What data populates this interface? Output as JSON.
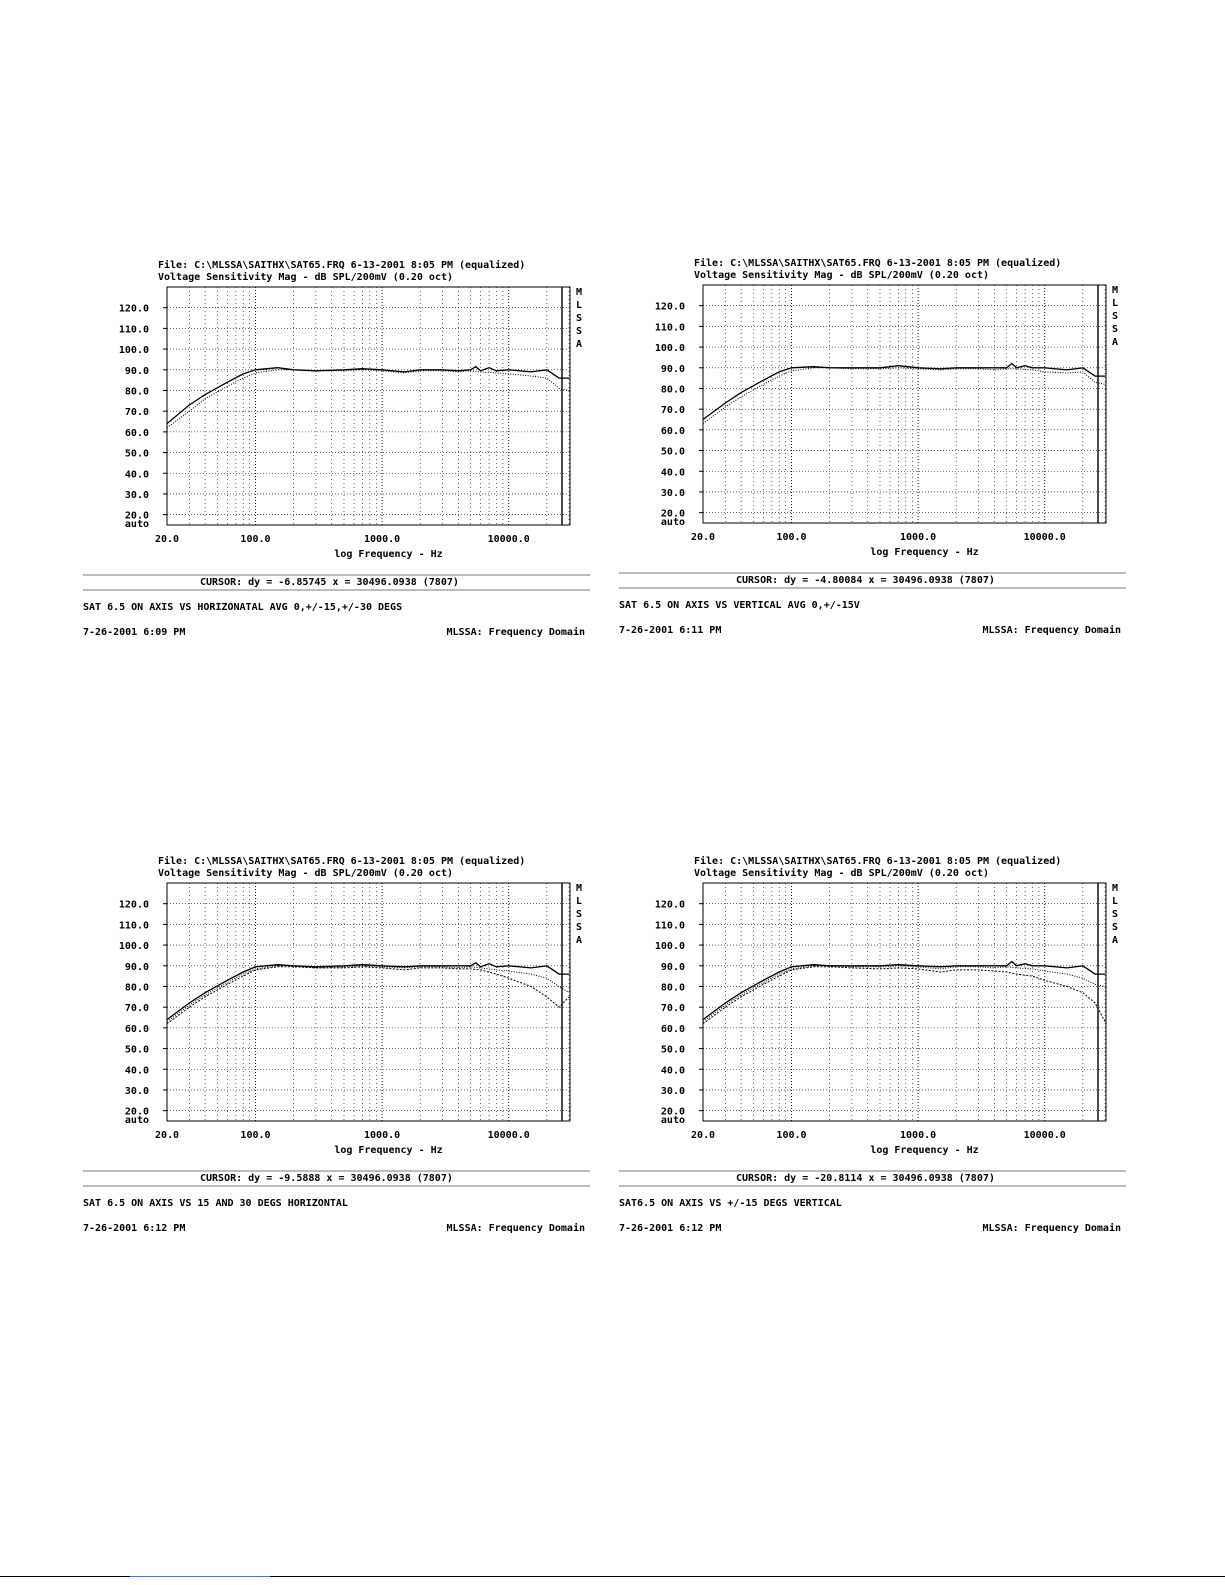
{
  "common": {
    "file_line": "File: C:\\MLSSA\\SAITHX\\SAT65.FRQ 6-13-2001 8:05 PM (equalized)",
    "title_line": "Voltage Sensitivity Mag - dB SPL/200mV (0.20 oct)",
    "brand_letters": [
      "M",
      "L",
      "S",
      "S",
      "A"
    ],
    "x_label": "log Frequency - Hz",
    "x_ticks": [
      "20.0",
      "100.0",
      "1000.0",
      "10000.0"
    ],
    "y_ticks": [
      "auto",
      "20.0",
      "30.0",
      "40.0",
      "50.0",
      "60.0",
      "70.0",
      "80.0",
      "90.0",
      "100.0",
      "110.0",
      "120.0"
    ],
    "domain_label": "MLSSA: Frequency Domain"
  },
  "panels": [
    {
      "cursor": "CURSOR: dy = -6.85745 x = 30496.0938 (7807)",
      "caption": "SAT 6.5 ON AXIS VS HORIZONATAL AVG 0,+/-15,+/-30 DEGS",
      "timestamp": "7-26-2001 6:09 PM"
    },
    {
      "cursor": "CURSOR: dy = -4.80084 x = 30496.0938 (7807)",
      "caption": "SAT 6.5 ON AXIS VS VERTICAL AVG 0,+/-15V",
      "timestamp": "7-26-2001 6:11 PM"
    },
    {
      "cursor": "CURSOR: dy = -9.5888 x = 30496.0938 (7807)",
      "caption": "SAT 6.5 ON AXIS VS 15 AND 30 DEGS HORIZONTAL",
      "timestamp": "7-26-2001 6:12 PM"
    },
    {
      "cursor": "CURSOR: dy = -20.8114 x = 30496.0938 (7807)",
      "caption": "SAT6.5 ON AXIS VS +/-15 DEGS VERTICAL",
      "timestamp": "7-26-2001 6:12 PM"
    }
  ],
  "chart_data": [
    {
      "type": "line",
      "xscale": "log",
      "xlim": [
        20,
        30496
      ],
      "ylim": [
        15,
        130
      ],
      "grid": true,
      "series": [
        {
          "x": [
            20,
            30,
            40,
            60,
            80,
            100,
            150,
            200,
            300,
            500,
            700,
            1000,
            1500,
            2000,
            3000,
            4000,
            5000,
            5500,
            6000,
            7000,
            8000,
            10000,
            15000,
            20000,
            25000,
            30000
          ],
          "y": [
            64,
            73,
            78,
            84,
            88,
            90,
            91,
            90,
            89.5,
            90,
            90.5,
            90,
            89,
            90,
            90,
            89.5,
            90,
            91.5,
            89.5,
            91,
            89.5,
            90,
            89,
            90,
            86,
            86
          ],
          "style": "solid"
        },
        {
          "x": [
            20,
            30,
            40,
            60,
            80,
            100,
            150,
            200,
            300,
            500,
            700,
            1000,
            1500,
            2000,
            3000,
            4000,
            5000,
            6000,
            8000,
            10000,
            15000,
            20000,
            25000,
            30000
          ],
          "y": [
            62,
            70,
            76,
            82,
            86,
            88.5,
            90,
            90,
            89.5,
            89.5,
            90,
            89.5,
            88.5,
            89.5,
            89.5,
            89,
            89.5,
            89,
            88.5,
            88,
            87,
            86,
            81,
            80
          ],
          "style": "dotted"
        }
      ]
    },
    {
      "type": "line",
      "xscale": "log",
      "xlim": [
        20,
        30496
      ],
      "ylim": [
        15,
        130
      ],
      "grid": true,
      "series": [
        {
          "x": [
            20,
            30,
            40,
            60,
            80,
            100,
            150,
            200,
            300,
            500,
            700,
            1000,
            1500,
            2000,
            3000,
            4000,
            5000,
            5500,
            6000,
            7000,
            8000,
            10000,
            15000,
            20000,
            25000,
            30000
          ],
          "y": [
            65,
            73,
            78,
            84,
            88,
            90,
            90.5,
            90,
            90,
            90,
            91,
            90,
            89.5,
            90,
            90,
            90,
            90,
            92,
            90,
            91,
            90,
            90,
            89,
            90,
            86,
            86
          ],
          "style": "solid"
        },
        {
          "x": [
            20,
            30,
            40,
            60,
            80,
            100,
            150,
            200,
            300,
            500,
            700,
            1000,
            1500,
            2000,
            3000,
            4000,
            5000,
            6000,
            8000,
            10000,
            15000,
            20000,
            25000,
            30000
          ],
          "y": [
            63,
            71,
            76,
            82,
            86,
            88.5,
            90,
            90,
            89.5,
            89.5,
            90,
            89.5,
            89,
            89.5,
            89.5,
            89,
            89.5,
            89.5,
            89,
            88,
            87.5,
            88,
            83,
            82
          ],
          "style": "dotted"
        }
      ]
    },
    {
      "type": "line",
      "xscale": "log",
      "xlim": [
        20,
        30496
      ],
      "ylim": [
        15,
        130
      ],
      "grid": true,
      "series": [
        {
          "x": [
            20,
            30,
            40,
            60,
            80,
            100,
            150,
            200,
            300,
            500,
            700,
            1000,
            1500,
            2000,
            3000,
            4000,
            5000,
            5500,
            6000,
            7000,
            8000,
            10000,
            15000,
            20000,
            25000,
            30000
          ],
          "y": [
            64,
            72,
            77,
            83,
            87,
            89.5,
            90.5,
            90,
            89.5,
            90,
            90.5,
            90,
            89.5,
            90,
            90,
            90,
            90,
            91.5,
            89.5,
            91,
            89.5,
            90,
            89,
            90,
            86,
            86
          ],
          "style": "solid"
        },
        {
          "x": [
            20,
            30,
            40,
            60,
            80,
            100,
            150,
            200,
            300,
            500,
            700,
            1000,
            1500,
            2000,
            3000,
            4000,
            5000,
            6000,
            8000,
            10000,
            15000,
            20000,
            25000,
            30000
          ],
          "y": [
            63,
            71,
            76,
            82,
            86,
            88.5,
            90,
            90,
            89,
            89.5,
            90,
            89.5,
            89,
            89.5,
            89.5,
            89,
            89.5,
            89,
            88,
            87.5,
            86,
            84,
            80,
            77
          ],
          "style": "dotted"
        },
        {
          "x": [
            20,
            30,
            40,
            60,
            80,
            100,
            150,
            200,
            300,
            500,
            700,
            1000,
            1500,
            2000,
            3000,
            4000,
            5000,
            6000,
            8000,
            10000,
            15000,
            20000,
            25000,
            30000
          ],
          "y": [
            62,
            70,
            75,
            81,
            85,
            88,
            89.5,
            89.5,
            89,
            89,
            89.5,
            89,
            88,
            89,
            89,
            88.5,
            88.5,
            88,
            86,
            84,
            80,
            75,
            70,
            75
          ],
          "style": "dotted"
        }
      ]
    },
    {
      "type": "line",
      "xscale": "log",
      "xlim": [
        20,
        30496
      ],
      "ylim": [
        15,
        130
      ],
      "grid": true,
      "series": [
        {
          "x": [
            20,
            30,
            40,
            60,
            80,
            100,
            150,
            200,
            300,
            500,
            700,
            1000,
            1500,
            2000,
            3000,
            4000,
            5000,
            5500,
            6000,
            7000,
            8000,
            10000,
            15000,
            20000,
            25000,
            30000
          ],
          "y": [
            64,
            72,
            77,
            83,
            87,
            89.5,
            90.5,
            90,
            90,
            90,
            90.5,
            90,
            89.5,
            90,
            90,
            90,
            90,
            92,
            90,
            91,
            90,
            90,
            89,
            90,
            86,
            86
          ],
          "style": "solid"
        },
        {
          "x": [
            20,
            30,
            40,
            60,
            80,
            100,
            150,
            200,
            300,
            500,
            700,
            1000,
            1500,
            2000,
            3000,
            4000,
            5000,
            6000,
            8000,
            10000,
            15000,
            20000,
            25000,
            30000
          ],
          "y": [
            63,
            71,
            76,
            82,
            86,
            88.5,
            90,
            90,
            89.5,
            89.5,
            90,
            89.5,
            88.5,
            89.5,
            89.5,
            89,
            89.5,
            89,
            88.5,
            87.5,
            86,
            84,
            81,
            80
          ],
          "style": "dotted"
        },
        {
          "x": [
            20,
            30,
            40,
            60,
            80,
            100,
            150,
            200,
            300,
            500,
            700,
            1000,
            1500,
            2000,
            3000,
            4000,
            5000,
            6000,
            8000,
            10000,
            15000,
            20000,
            25000,
            30000
          ],
          "y": [
            62,
            70,
            75,
            81,
            85,
            88,
            89.5,
            89.5,
            89,
            88.5,
            89,
            88.5,
            87,
            88,
            88,
            87.5,
            87,
            86,
            85,
            83,
            80,
            77,
            72,
            63
          ],
          "style": "dotted"
        }
      ]
    }
  ]
}
